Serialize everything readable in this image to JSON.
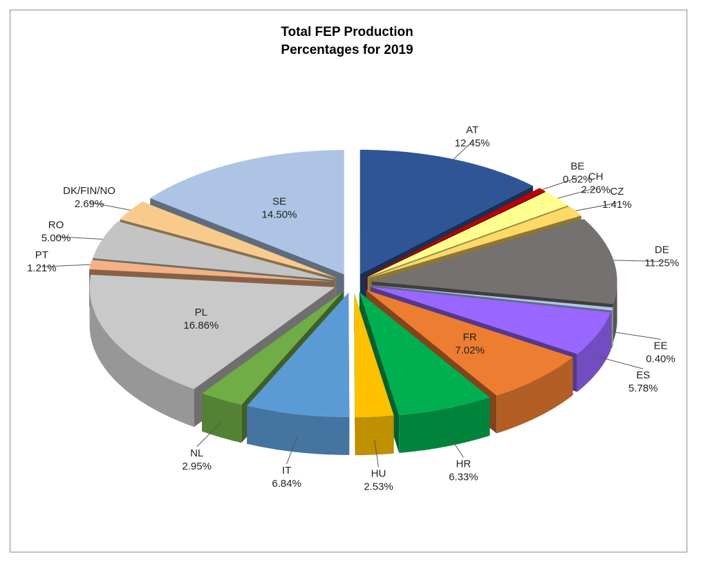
{
  "chart_data": {
    "type": "pie",
    "title_line1": "Total FEP Production",
    "title_line2": "Percentages for 2019",
    "style": "3d-exploded",
    "slices": [
      {
        "name": "AT",
        "value": 12.45,
        "label": "12.45%",
        "color": "#2f5597"
      },
      {
        "name": "BE",
        "value": 0.52,
        "label": "0.52%",
        "color": "#c00000"
      },
      {
        "name": "CH",
        "value": 2.26,
        "label": "2.26%",
        "color": "#ffff8f"
      },
      {
        "name": "CZ",
        "value": 1.41,
        "label": "1.41%",
        "color": "#ffd966"
      },
      {
        "name": "DE",
        "value": 11.25,
        "label": "11.25%",
        "color": "#767171"
      },
      {
        "name": "EE",
        "value": 0.4,
        "label": "0.40%",
        "color": "#adc6e6"
      },
      {
        "name": "ES",
        "value": 5.78,
        "label": "5.78%",
        "color": "#9966ff"
      },
      {
        "name": "FR",
        "value": 7.02,
        "label": "7.02%",
        "color": "#ed7d31"
      },
      {
        "name": "HR",
        "value": 6.33,
        "label": "6.33%",
        "color": "#00b050"
      },
      {
        "name": "HU",
        "value": 2.53,
        "label": "2.53%",
        "color": "#ffc000"
      },
      {
        "name": "IT",
        "value": 6.84,
        "label": "6.84%",
        "color": "#5b9bd5"
      },
      {
        "name": "NL",
        "value": 2.95,
        "label": "2.95%",
        "color": "#70ad47"
      },
      {
        "name": "PL",
        "value": 16.86,
        "label": "16.86%",
        "color": "#c9c9c9"
      },
      {
        "name": "PT",
        "value": 1.21,
        "label": "1.21%",
        "color": "#f4b183"
      },
      {
        "name": "RO",
        "value": 5.0,
        "label": "5.00%",
        "color": "#c4c4c4"
      },
      {
        "name": "DK/FIN/NO",
        "value": 2.69,
        "label": "2.69%",
        "color": "#f8cb8d"
      },
      {
        "name": "SE",
        "value": 14.5,
        "label": "14.50%",
        "color": "#adc4e4"
      }
    ]
  }
}
